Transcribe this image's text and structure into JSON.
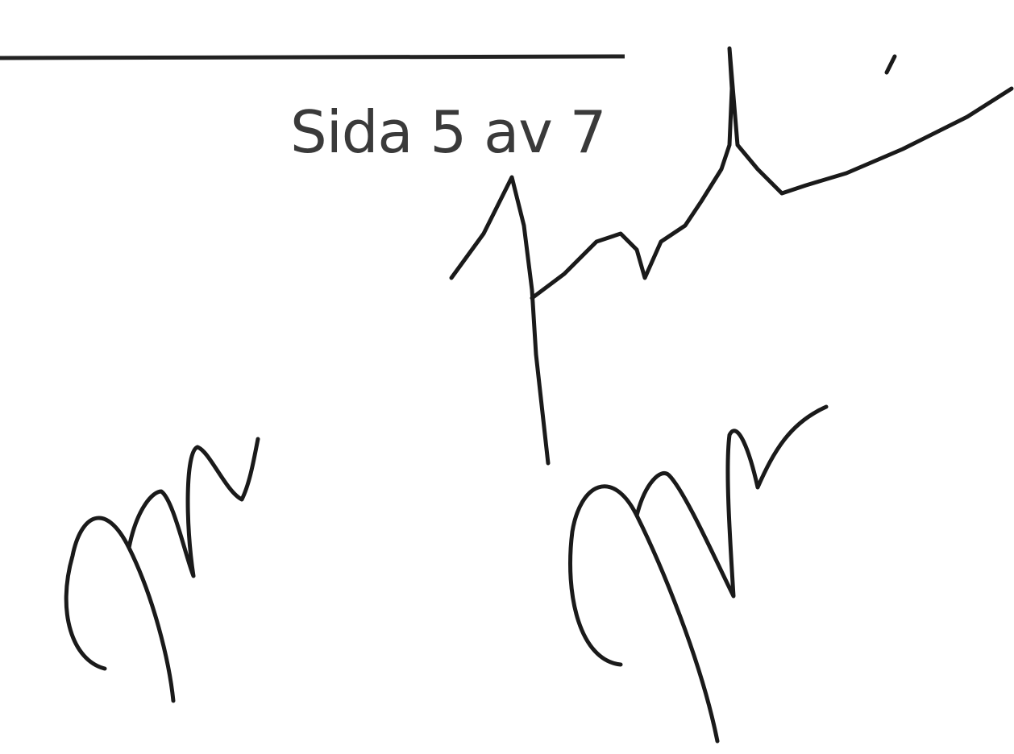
{
  "footer": {
    "page_label": "Sida 5 av 7"
  }
}
